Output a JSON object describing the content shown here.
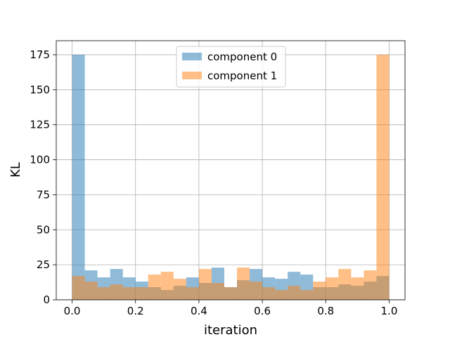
{
  "chart_data": {
    "type": "bar",
    "subtype": "histogram",
    "title": "",
    "xlabel": "iteration",
    "ylabel": "KL",
    "xlim": [
      -0.05,
      1.05
    ],
    "ylim": [
      0,
      185
    ],
    "xticks": [
      0.0,
      0.2,
      0.4,
      0.6,
      0.8,
      1.0
    ],
    "xtick_labels": [
      "0.0",
      "0.2",
      "0.4",
      "0.6",
      "0.8",
      "1.0"
    ],
    "yticks": [
      0,
      25,
      50,
      75,
      100,
      125,
      150,
      175
    ],
    "ytick_labels": [
      "0",
      "25",
      "50",
      "75",
      "100",
      "125",
      "150",
      "175"
    ],
    "grid": true,
    "legend_position": "top-center",
    "bin_edges": [
      0.0,
      0.04,
      0.08,
      0.12,
      0.16,
      0.2,
      0.24,
      0.28,
      0.32,
      0.36,
      0.4,
      0.44,
      0.48,
      0.52,
      0.56,
      0.6,
      0.64,
      0.68,
      0.72,
      0.76,
      0.8,
      0.84,
      0.88,
      0.92,
      0.96,
      1.0
    ],
    "series": [
      {
        "name": "component 0",
        "color": "#1f77b4",
        "alpha": 0.5,
        "values": [
          175,
          21,
          16,
          22,
          16,
          13,
          9,
          7,
          10,
          16,
          12,
          23,
          9,
          14,
          22,
          16,
          15,
          20,
          18,
          9,
          9,
          11,
          10,
          13,
          17
        ]
      },
      {
        "name": "component 1",
        "color": "#ff7f0e",
        "alpha": 0.5,
        "values": [
          17,
          13,
          9,
          11,
          9,
          9,
          18,
          20,
          15,
          9,
          22,
          12,
          9,
          23,
          13,
          9,
          7,
          10,
          7,
          13,
          16,
          22,
          16,
          21,
          175
        ]
      }
    ]
  }
}
